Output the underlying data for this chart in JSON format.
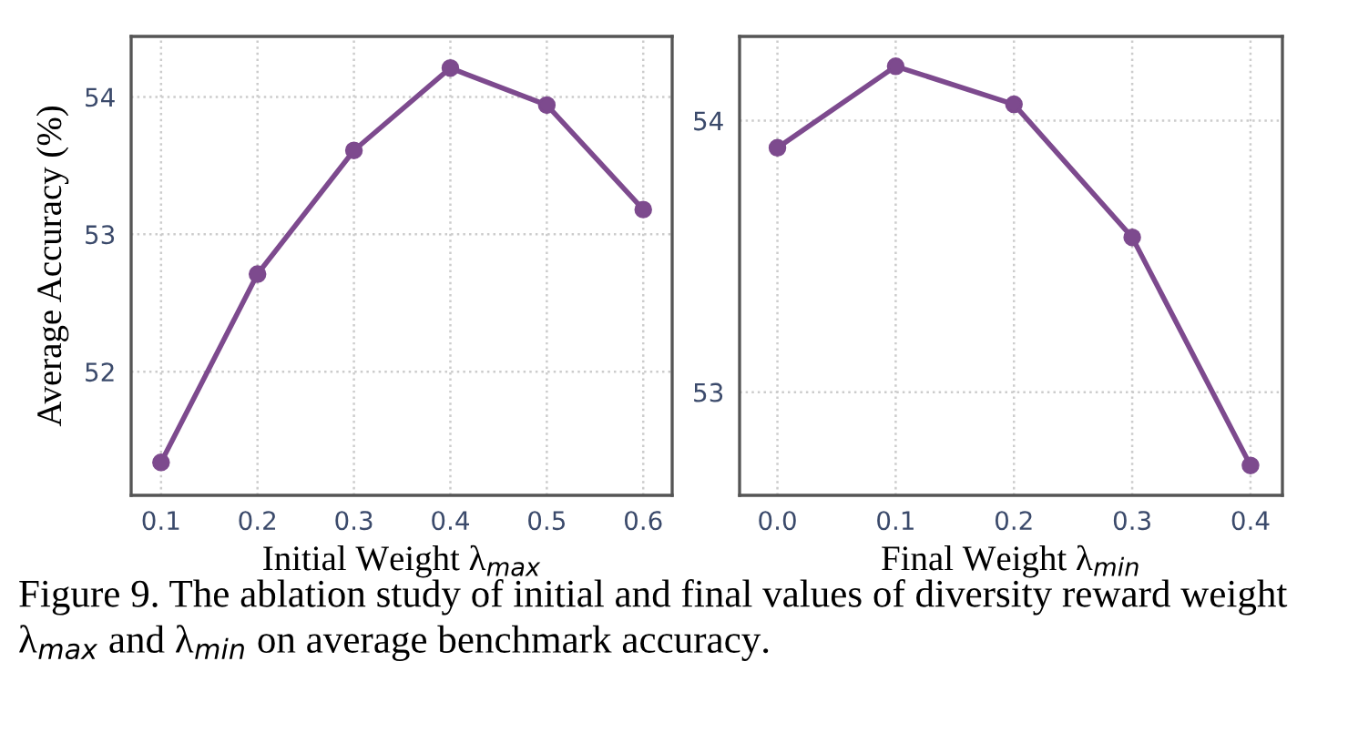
{
  "chart_data": [
    {
      "type": "line",
      "xlabel": "Initial Weight λ$_{max}$",
      "ylabel": "Average Accuracy (%)",
      "x": [
        0.1,
        0.2,
        0.3,
        0.4,
        0.5,
        0.6
      ],
      "series": [
        {
          "color": "#7d4a8e",
          "values": [
            51.34,
            52.71,
            53.61,
            54.21,
            53.94,
            53.18
          ]
        }
      ],
      "xlim": [
        0.069,
        0.63
      ],
      "xticks": [
        {
          "value": 0.1,
          "label": "0.1"
        },
        {
          "value": 0.2,
          "label": "0.2"
        },
        {
          "value": 0.3,
          "label": "0.3"
        },
        {
          "value": 0.4,
          "label": "0.4"
        },
        {
          "value": 0.5,
          "label": "0.5"
        },
        {
          "value": 0.6,
          "label": "0.6"
        }
      ],
      "ylim": [
        51.1,
        54.44
      ],
      "yticks": [
        52,
        53,
        54
      ],
      "grid": true,
      "marker": "circle",
      "line_style": "solid",
      "annotations": [
        "Figure 9. The ablation study of initial and final values of diversity reward weight λ$_{max}$ and λ$_{min}$ on average benchmark accuracy."
      ]
    },
    {
      "type": "line",
      "xlabel": "Final Weight λ$_{min}$",
      "x": [
        0.0,
        0.1,
        0.2,
        0.3,
        0.4
      ],
      "series": [
        {
          "color": "#7d4a8e",
          "values": [
            53.9,
            54.2,
            54.06,
            53.57,
            52.73
          ]
        }
      ],
      "xlim": [
        -0.032,
        0.427
      ],
      "xticks": [
        {
          "value": 0.0,
          "label": "0.0"
        },
        {
          "value": 0.1,
          "label": "0.1"
        },
        {
          "value": 0.2,
          "label": "0.2"
        },
        {
          "value": 0.3,
          "label": "0.3"
        },
        {
          "value": 0.4,
          "label": "0.4"
        }
      ],
      "ylim": [
        52.62,
        54.31
      ],
      "yticks": [
        53,
        54
      ],
      "grid": true,
      "marker": "circle",
      "line_style": "solid"
    }
  ]
}
